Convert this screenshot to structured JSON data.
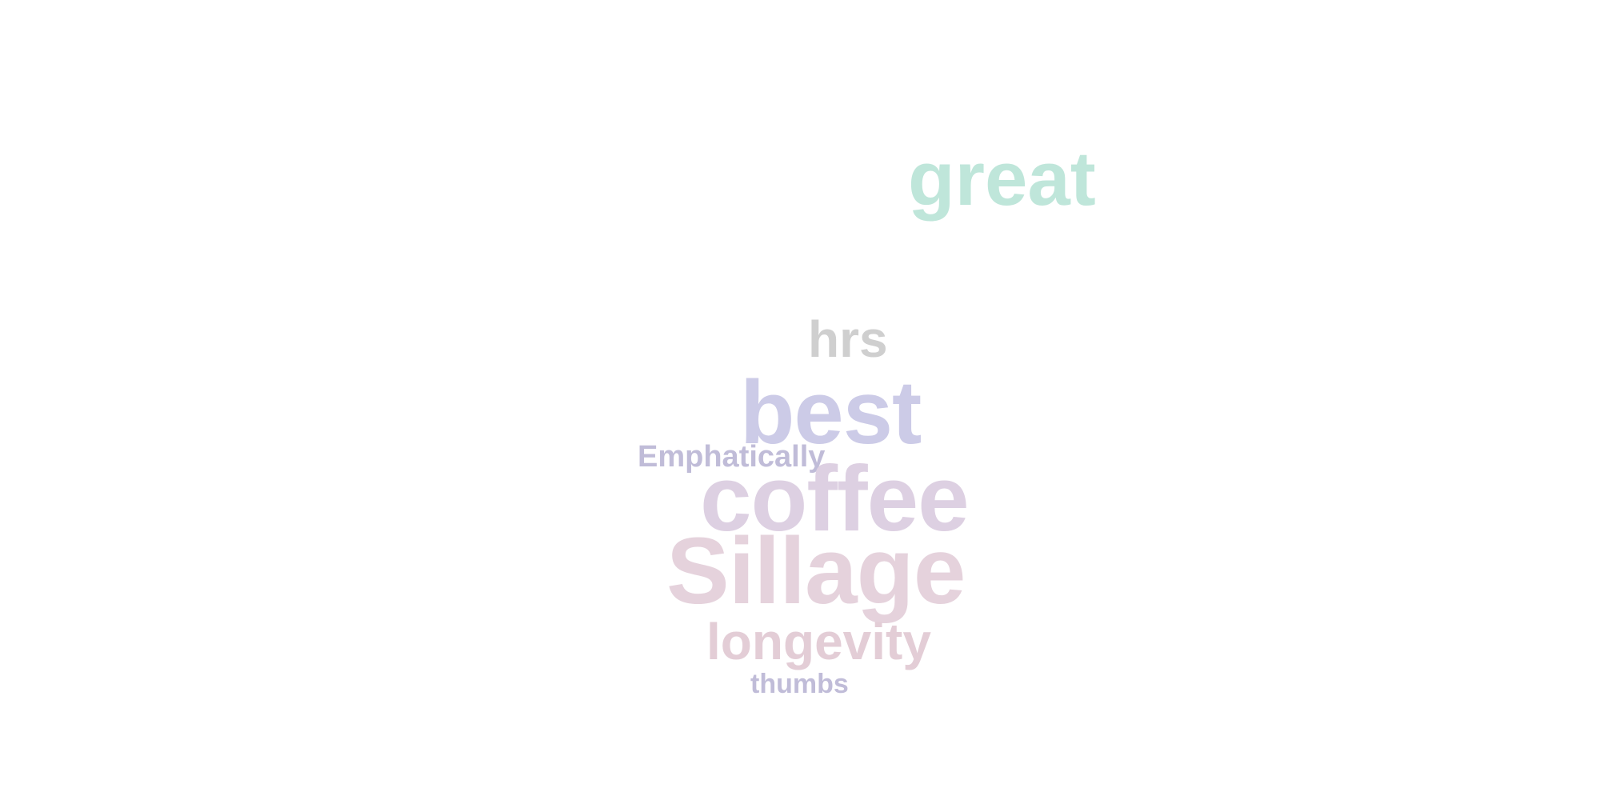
{
  "word_cloud": {
    "words": [
      {
        "id": "great",
        "text": "great",
        "color": "#bfe6da"
      },
      {
        "id": "hrs",
        "text": "hrs",
        "color": "#cfcfcf"
      },
      {
        "id": "best",
        "text": "best",
        "color": "#cccbe7"
      },
      {
        "id": "emphatically",
        "text": "Emphatically",
        "color": "#c0bcd8"
      },
      {
        "id": "coffee",
        "text": "coffee",
        "color": "#ddd0e2"
      },
      {
        "id": "sillage",
        "text": "Sillage",
        "color": "#e5d2dc"
      },
      {
        "id": "longevity",
        "text": "longevity",
        "color": "#e3cdd6"
      },
      {
        "id": "thumbs",
        "text": "thumbs",
        "color": "#c0bcd8"
      }
    ]
  }
}
